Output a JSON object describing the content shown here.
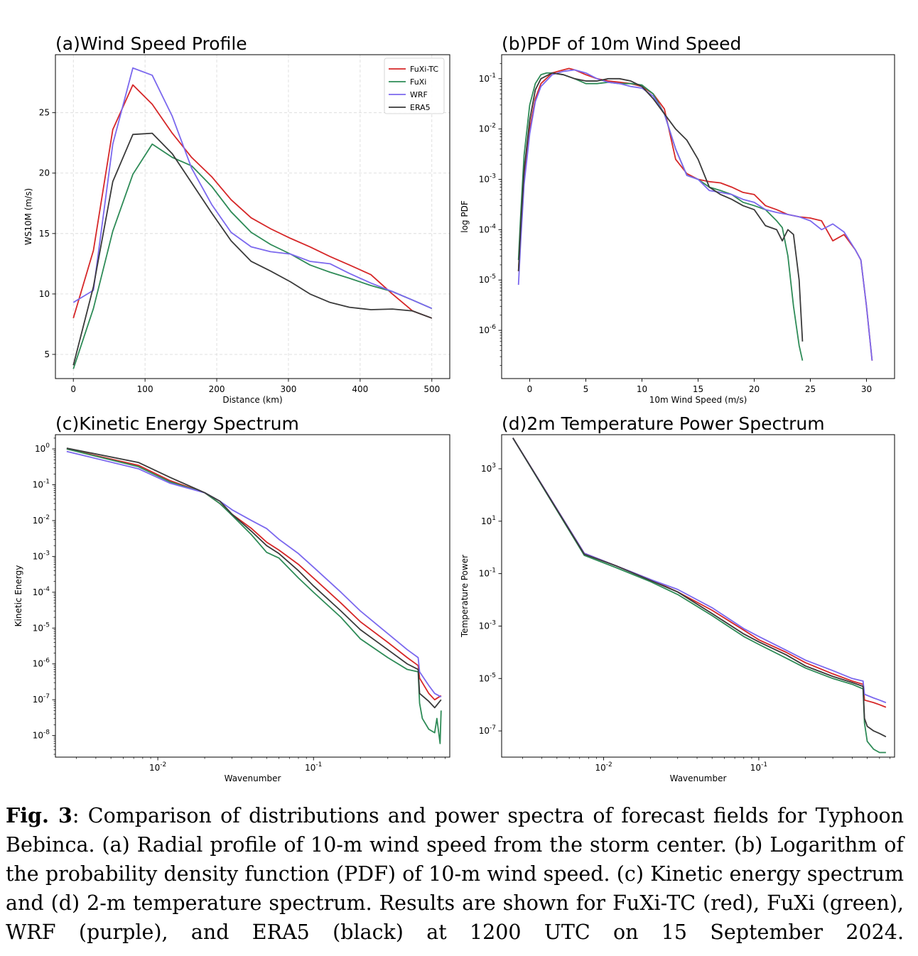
{
  "colors": {
    "FuXi-TC": "#d62728",
    "FuXi": "#2e8b57",
    "WRF": "#7b68ee",
    "ERA5": "#3a3a3a"
  },
  "caption": {
    "label": "Fig. 3",
    "text": ": Comparison of distributions and power spectra of forecast fields for Typhoon Bebinca. (a) Radial profile of 10-m wind speed from the storm center. (b) Logarithm of the probability density function (PDF) of 10-m wind speed. (c) Kinetic energy spectrum and (d) 2-m temperature spectrum. Results are shown for FuXi-TC (red), FuXi (green), WRF (purple), and ERA5 (black) at 1200 UTC on 15 September 2024."
  },
  "chart_data": [
    {
      "id": "a",
      "type": "line",
      "title": "(a)Wind Speed Profile",
      "xlabel": "Distance (km)",
      "ylabel": "WS10M (m/s)",
      "xlim": [
        -25,
        525
      ],
      "ylim": [
        3.0,
        29.8
      ],
      "xticks": [
        0,
        100,
        200,
        300,
        400,
        500
      ],
      "yticks": [
        5,
        10,
        15,
        20,
        25
      ],
      "grid": true,
      "legend": "top-right",
      "series": [
        {
          "name": "FuXi-TC",
          "x": [
            0,
            28,
            55,
            83,
            110,
            138,
            165,
            193,
            220,
            248,
            275,
            303,
            330,
            358,
            385,
            415,
            445,
            473,
            500
          ],
          "y": [
            8.0,
            13.6,
            23.6,
            27.3,
            25.7,
            23.3,
            21.3,
            19.7,
            17.8,
            16.3,
            15.4,
            14.6,
            13.9,
            13.1,
            12.4,
            11.6,
            10.0,
            8.6,
            8.0
          ]
        },
        {
          "name": "FuXi",
          "x": [
            0,
            28,
            55,
            83,
            110,
            138,
            165,
            193,
            220,
            248,
            275,
            303,
            330,
            358,
            385,
            415,
            445,
            473,
            500
          ],
          "y": [
            3.8,
            8.8,
            15.2,
            19.9,
            22.4,
            21.3,
            20.6,
            18.9,
            16.8,
            15.1,
            14.1,
            13.3,
            12.4,
            11.8,
            11.3,
            10.7,
            10.2,
            9.5,
            8.8
          ]
        },
        {
          "name": "WRF",
          "x": [
            0,
            28,
            55,
            83,
            110,
            138,
            165,
            193,
            220,
            248,
            275,
            303,
            330,
            358,
            385,
            415,
            445,
            473,
            500
          ],
          "y": [
            9.3,
            10.3,
            22.4,
            28.7,
            28.1,
            24.7,
            20.4,
            17.4,
            15.1,
            13.9,
            13.5,
            13.3,
            12.7,
            12.5,
            11.7,
            10.9,
            10.2,
            9.5,
            8.8
          ]
        },
        {
          "name": "ERA5",
          "x": [
            0,
            28,
            55,
            83,
            110,
            138,
            165,
            193,
            220,
            248,
            275,
            303,
            330,
            358,
            385,
            415,
            445,
            473,
            500
          ],
          "y": [
            4.1,
            10.6,
            19.3,
            23.2,
            23.3,
            21.6,
            19.2,
            16.7,
            14.4,
            12.7,
            11.9,
            11.0,
            10.0,
            9.3,
            8.9,
            8.7,
            8.75,
            8.6,
            8.0
          ]
        }
      ]
    },
    {
      "id": "b",
      "type": "line",
      "title": "(b)PDF of 10m Wind Speed",
      "xlabel": "10m Wind Speed (m/s)",
      "ylabel": "log PDF",
      "xlim": [
        -2.5,
        32.5
      ],
      "yscale": "log",
      "ylim": [
        1.1e-07,
        0.3
      ],
      "xticks": [
        0,
        5,
        10,
        15,
        20,
        25,
        30
      ],
      "yticks": [
        1e-06,
        1e-05,
        0.0001,
        0.001,
        0.01,
        0.1
      ],
      "ytick_labels": [
        "10^-6",
        "10^-5",
        "10^-4",
        "10^-3",
        "10^-2",
        "10^-1"
      ],
      "grid": false,
      "series": [
        {
          "name": "FuXi-TC",
          "x": [
            -1,
            -0.8,
            -0.5,
            0,
            0.5,
            1,
            2,
            3,
            3.5,
            4,
            5,
            6,
            7,
            8,
            9,
            10,
            11,
            12,
            13,
            14,
            15,
            16,
            17,
            18,
            19,
            20,
            21,
            22,
            23,
            24,
            25,
            26,
            27,
            28,
            29,
            29.5,
            30,
            30.5
          ],
          "y": [
            1.5e-05,
            0.0001,
            0.001,
            0.01,
            0.04,
            0.08,
            0.13,
            0.15,
            0.16,
            0.15,
            0.12,
            0.1,
            0.09,
            0.085,
            0.08,
            0.07,
            0.05,
            0.025,
            0.0025,
            0.0013,
            0.001,
            0.0009,
            0.00085,
            0.0007,
            0.00055,
            0.0005,
            0.0003,
            0.00025,
            0.0002,
            0.00018,
            0.00017,
            0.00015,
            6e-05,
            8e-05,
            4e-05,
            2.5e-05,
            3e-06,
            2.5e-07
          ]
        },
        {
          "name": "FuXi",
          "x": [
            -1,
            -0.8,
            -0.5,
            0,
            0.5,
            1,
            1.5,
            2,
            3,
            4,
            5,
            6,
            7,
            8,
            9,
            10,
            11,
            12,
            13,
            14,
            15,
            16,
            17,
            18,
            19,
            20,
            21,
            22,
            22.5,
            23,
            23.5,
            24,
            24.3
          ],
          "y": [
            2.5e-05,
            0.0002,
            0.003,
            0.03,
            0.08,
            0.12,
            0.13,
            0.13,
            0.12,
            0.1,
            0.08,
            0.08,
            0.085,
            0.08,
            0.08,
            0.075,
            0.05,
            0.02,
            0.004,
            0.0012,
            0.001,
            0.0007,
            0.0006,
            0.0005,
            0.00035,
            0.0003,
            0.00025,
            0.00015,
            0.00011,
            3e-05,
            3e-06,
            5e-07,
            2.5e-07
          ]
        },
        {
          "name": "WRF",
          "x": [
            -1,
            -0.8,
            -0.5,
            0,
            0.5,
            1,
            2,
            3,
            4,
            5,
            6,
            7,
            8,
            9,
            10,
            11,
            12,
            13,
            14,
            15,
            16,
            17,
            18,
            19,
            20,
            21,
            22,
            23,
            24,
            25,
            26,
            27,
            28,
            29,
            29.5,
            30,
            30.5
          ],
          "y": [
            8e-06,
            6e-05,
            0.0008,
            0.008,
            0.035,
            0.07,
            0.12,
            0.14,
            0.15,
            0.13,
            0.1,
            0.085,
            0.08,
            0.07,
            0.065,
            0.045,
            0.02,
            0.004,
            0.0012,
            0.001,
            0.0006,
            0.00055,
            0.0005,
            0.0004,
            0.00035,
            0.00025,
            0.00022,
            0.0002,
            0.00018,
            0.00015,
            0.0001,
            0.00013,
            9e-05,
            4e-05,
            2.5e-05,
            3e-06,
            2.5e-07
          ]
        },
        {
          "name": "ERA5",
          "x": [
            -1,
            -0.8,
            -0.5,
            0,
            0.5,
            1,
            2,
            3,
            4,
            5,
            6,
            7,
            8,
            9,
            10,
            11,
            12,
            13,
            14,
            15,
            16,
            17,
            18,
            19,
            20,
            21,
            22,
            22.5,
            23,
            23.5,
            24,
            24.3
          ],
          "y": [
            1.5e-05,
            0.00012,
            0.0015,
            0.015,
            0.06,
            0.1,
            0.13,
            0.12,
            0.1,
            0.09,
            0.09,
            0.1,
            0.1,
            0.09,
            0.07,
            0.04,
            0.02,
            0.01,
            0.006,
            0.0025,
            0.0007,
            0.0005,
            0.0004,
            0.0003,
            0.00025,
            0.00012,
            0.0001,
            6e-05,
            0.0001,
            8e-05,
            1e-05,
            6e-07
          ]
        }
      ]
    },
    {
      "id": "c",
      "type": "line",
      "title": "(c)Kinetic Energy Spectrum",
      "xlabel": "Wavenumber",
      "ylabel": "Kinetic Energy",
      "xscale": "log",
      "yscale": "log",
      "xlim": [
        0.0022,
        0.75
      ],
      "ylim": [
        2.5e-09,
        2.5
      ],
      "xticks": [
        0.01,
        0.1
      ],
      "xtick_labels": [
        "10^-2",
        "10^-1"
      ],
      "yticks": [
        1e-08,
        1e-07,
        1e-06,
        1e-05,
        0.0001,
        0.001,
        0.01,
        0.1,
        1
      ],
      "ytick_labels": [
        "10^-8",
        "10^-7",
        "10^-6",
        "10^-5",
        "10^-4",
        "10^-3",
        "10^-2",
        "10^-1",
        "10^0"
      ],
      "grid": false,
      "series": [
        {
          "name": "FuXi-TC",
          "x": [
            0.0026,
            0.0075,
            0.012,
            0.02,
            0.025,
            0.03,
            0.04,
            0.05,
            0.06,
            0.08,
            0.1,
            0.15,
            0.2,
            0.3,
            0.4,
            0.47,
            0.48,
            0.55,
            0.6,
            0.66
          ],
          "y": [
            1.0,
            0.35,
            0.13,
            0.06,
            0.03,
            0.015,
            0.006,
            0.0025,
            0.0015,
            0.0006,
            0.00025,
            5e-05,
            1.5e-05,
            4e-06,
            1.5e-06,
            9e-07,
            4e-07,
            1.5e-07,
            1e-07,
            1.3e-07
          ]
        },
        {
          "name": "FuXi",
          "x": [
            0.0026,
            0.0075,
            0.012,
            0.02,
            0.025,
            0.03,
            0.04,
            0.05,
            0.06,
            0.08,
            0.1,
            0.15,
            0.2,
            0.3,
            0.4,
            0.47,
            0.48,
            0.5,
            0.55,
            0.6,
            0.62,
            0.65,
            0.66
          ],
          "y": [
            1.0,
            0.32,
            0.12,
            0.06,
            0.03,
            0.014,
            0.004,
            0.0013,
            0.0009,
            0.00025,
            0.0001,
            2e-05,
            5e-06,
            1.5e-06,
            7e-07,
            6e-07,
            8e-08,
            3e-08,
            1.5e-08,
            1.2e-08,
            3e-08,
            6e-09,
            5e-08
          ]
        },
        {
          "name": "WRF",
          "x": [
            0.0026,
            0.0075,
            0.012,
            0.02,
            0.025,
            0.03,
            0.04,
            0.05,
            0.06,
            0.08,
            0.1,
            0.15,
            0.2,
            0.3,
            0.4,
            0.47,
            0.48,
            0.55,
            0.6,
            0.66
          ],
          "y": [
            0.85,
            0.28,
            0.11,
            0.06,
            0.035,
            0.02,
            0.01,
            0.006,
            0.003,
            0.0012,
            0.0005,
            0.0001,
            3e-05,
            7e-06,
            2.5e-06,
            1.5e-06,
            6e-07,
            2.5e-07,
            1.5e-07,
            1.2e-07
          ]
        },
        {
          "name": "ERA5",
          "x": [
            0.0026,
            0.0075,
            0.012,
            0.02,
            0.025,
            0.03,
            0.04,
            0.05,
            0.06,
            0.08,
            0.1,
            0.15,
            0.2,
            0.3,
            0.4,
            0.47,
            0.48,
            0.55,
            0.6,
            0.66
          ],
          "y": [
            1.05,
            0.42,
            0.16,
            0.06,
            0.035,
            0.015,
            0.005,
            0.002,
            0.0012,
            0.0004,
            0.00015,
            3e-05,
            9e-06,
            2.5e-06,
            1e-06,
            7e-07,
            1.5e-07,
            9e-08,
            6e-08,
            1e-07
          ]
        }
      ]
    },
    {
      "id": "d",
      "type": "line",
      "title": "(d)2m Temperature Power Spectrum",
      "xlabel": "Wavenumber",
      "ylabel": "Temperature Power",
      "xscale": "log",
      "yscale": "log",
      "xlim": [
        0.0022,
        0.75
      ],
      "ylim": [
        1e-08,
        20000
      ],
      "xticks": [
        0.01,
        0.1
      ],
      "xtick_labels": [
        "10^-2",
        "10^-1"
      ],
      "yticks": [
        1e-07,
        1e-05,
        0.001,
        0.1,
        10,
        1000
      ],
      "ytick_labels": [
        "10^-7",
        "10^-5",
        "10^-3",
        "10^-1",
        "10^1",
        "10^3"
      ],
      "grid": false,
      "series": [
        {
          "name": "FuXi-TC",
          "x": [
            0.0026,
            0.0075,
            0.012,
            0.02,
            0.03,
            0.05,
            0.08,
            0.1,
            0.15,
            0.2,
            0.3,
            0.4,
            0.47,
            0.48,
            0.55,
            0.6,
            0.66
          ],
          "y": [
            15000,
            0.6,
            0.2,
            0.06,
            0.02,
            0.004,
            0.0007,
            0.0003,
            0.0001,
            4e-05,
            1.5e-05,
            8e-06,
            6e-06,
            1.5e-06,
            1.2e-06,
            1e-06,
            8e-07
          ]
        },
        {
          "name": "FuXi",
          "x": [
            0.0026,
            0.0075,
            0.012,
            0.02,
            0.03,
            0.05,
            0.08,
            0.1,
            0.15,
            0.2,
            0.3,
            0.4,
            0.47,
            0.48,
            0.5,
            0.55,
            0.6,
            0.66
          ],
          "y": [
            15000,
            0.5,
            0.17,
            0.05,
            0.016,
            0.0025,
            0.0004,
            0.0002,
            6e-05,
            2.5e-05,
            1e-05,
            6e-06,
            4e-06,
            2e-07,
            4e-08,
            2e-08,
            1.5e-08,
            1.5e-08
          ]
        },
        {
          "name": "WRF",
          "x": [
            0.0026,
            0.0075,
            0.012,
            0.02,
            0.03,
            0.05,
            0.08,
            0.1,
            0.15,
            0.2,
            0.3,
            0.4,
            0.47,
            0.48,
            0.55,
            0.6,
            0.66
          ],
          "y": [
            15000,
            0.6,
            0.2,
            0.06,
            0.025,
            0.005,
            0.0008,
            0.0004,
            0.00012,
            5e-05,
            2e-05,
            1e-05,
            8e-06,
            2.5e-06,
            1.8e-06,
            1.5e-06,
            1.2e-06
          ]
        },
        {
          "name": "ERA5",
          "x": [
            0.0026,
            0.0075,
            0.012,
            0.02,
            0.03,
            0.05,
            0.08,
            0.1,
            0.15,
            0.2,
            0.3,
            0.4,
            0.47,
            0.48,
            0.5,
            0.55,
            0.6,
            0.66
          ],
          "y": [
            15000,
            0.55,
            0.2,
            0.055,
            0.02,
            0.003,
            0.0005,
            0.00025,
            8e-05,
            3e-05,
            1.2e-05,
            7e-06,
            5e-06,
            3e-07,
            1.5e-07,
            1e-07,
            8e-08,
            6e-08
          ]
        }
      ]
    }
  ]
}
